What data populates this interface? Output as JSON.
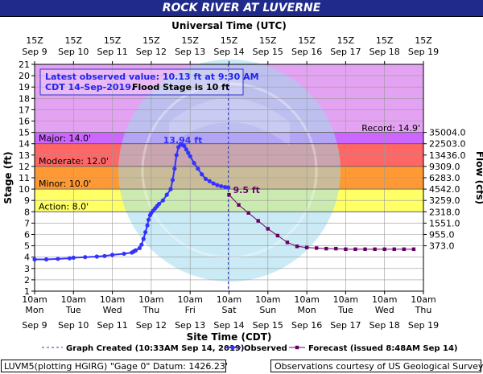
{
  "chart_data": {
    "type": "line",
    "title": "ROCK RIVER AT LUVERNE",
    "top_axis_title": "Universal Time (UTC)",
    "top_tick_labels": [
      [
        "15Z",
        "Sep 9"
      ],
      [
        "15Z",
        "Sep 10"
      ],
      [
        "15Z",
        "Sep 11"
      ],
      [
        "15Z",
        "Sep 12"
      ],
      [
        "15Z",
        "Sep 13"
      ],
      [
        "15Z",
        "Sep 14"
      ],
      [
        "15Z",
        "Sep 15"
      ],
      [
        "15Z",
        "Sep 16"
      ],
      [
        "15Z",
        "Sep 17"
      ],
      [
        "15Z",
        "Sep 18"
      ],
      [
        "15Z",
        "Sep 19"
      ]
    ],
    "bottom_tick_labels": [
      [
        "10am",
        "Mon",
        "Sep 9"
      ],
      [
        "10am",
        "Tue",
        "Sep 10"
      ],
      [
        "10am",
        "Wed",
        "Sep 11"
      ],
      [
        "10am",
        "Thu",
        "Sep 12"
      ],
      [
        "10am",
        "Fri",
        "Sep 13"
      ],
      [
        "10am",
        "Sat",
        "Sep 14"
      ],
      [
        "10am",
        "Sun",
        "Sep 15"
      ],
      [
        "10am",
        "Mon",
        "Sep 16"
      ],
      [
        "10am",
        "Tue",
        "Sep 17"
      ],
      [
        "10am",
        "Wed",
        "Sep 18"
      ],
      [
        "10am",
        "Thu",
        "Sep 19"
      ]
    ],
    "xlabel": "Site Time (CDT)",
    "ylabel": "Stage (ft)",
    "y2label": "Flow (cfs)",
    "ylim": [
      1,
      21
    ],
    "yticks": [
      1,
      2,
      3,
      4,
      5,
      6,
      7,
      8,
      9,
      10,
      11,
      12,
      13,
      14,
      15,
      16,
      17,
      18,
      19,
      20,
      21
    ],
    "xlim": [
      0,
      10
    ],
    "flow_ticks": [
      {
        "stage": 15,
        "label": "35004.0"
      },
      {
        "stage": 14,
        "label": "22503.0"
      },
      {
        "stage": 13,
        "label": "13436.0"
      },
      {
        "stage": 12,
        "label": "9309.0"
      },
      {
        "stage": 11,
        "label": "6283.0"
      },
      {
        "stage": 10,
        "label": "4542.0"
      },
      {
        "stage": 9,
        "label": "3259.0"
      },
      {
        "stage": 8,
        "label": "2318.0"
      },
      {
        "stage": 7,
        "label": "1551.0"
      },
      {
        "stage": 6,
        "label": "955.0"
      },
      {
        "stage": 5,
        "label": "373.0"
      }
    ],
    "bands": [
      {
        "name": "Record",
        "from": 15,
        "to": 21,
        "color": "#e3a3f2"
      },
      {
        "name": "Major",
        "from": 14,
        "to": 15,
        "color": "#cc66ff"
      },
      {
        "name": "Major",
        "from": 12,
        "to": 14,
        "color": "#ff6666"
      },
      {
        "name": "Moderate",
        "from": 10,
        "to": 12,
        "color": "#ff9933"
      },
      {
        "name": "Minor",
        "from": 8,
        "to": 10,
        "color": "#ffff66"
      }
    ],
    "threshold_labels": [
      {
        "label": "Record: 14.9'",
        "stage": 14.9,
        "side": "right"
      },
      {
        "label": "Major: 14.0'",
        "stage": 14,
        "side": "left"
      },
      {
        "label": "Moderate: 12.0'",
        "stage": 12,
        "side": "left"
      },
      {
        "label": "Minor: 10.0'",
        "stage": 10,
        "side": "left"
      },
      {
        "label": "Action: 8.0'",
        "stage": 8,
        "side": "left"
      }
    ],
    "annotations": {
      "info_line1": "Latest observed value: 10.13 ft at 9:30 AM",
      "info_line2_blue": "CDT 14-Sep-2019.",
      "info_line2_black": "Flood Stage is 10 ft",
      "peak_label": "13.94 ft",
      "forecast_label": "9.5 ft"
    },
    "graph_created_day": 4.98,
    "series": [
      {
        "name": "Observed",
        "color": "#3333ff",
        "x": [
          0.0,
          0.3,
          0.6,
          0.9,
          1.0,
          1.3,
          1.6,
          1.8,
          2.0,
          2.3,
          2.5,
          2.55,
          2.6,
          2.7,
          2.75,
          2.8,
          2.85,
          2.9,
          2.93,
          2.97,
          3.0,
          3.05,
          3.1,
          3.15,
          3.2,
          3.3,
          3.4,
          3.5,
          3.55,
          3.6,
          3.65,
          3.7,
          3.75,
          3.8,
          3.85,
          3.9,
          3.95,
          4.0,
          4.1,
          4.2,
          4.3,
          4.4,
          4.5,
          4.6,
          4.7,
          4.8,
          4.9,
          4.98
        ],
        "y": [
          3.8,
          3.8,
          3.85,
          3.9,
          3.95,
          4.0,
          4.05,
          4.1,
          4.2,
          4.3,
          4.4,
          4.5,
          4.6,
          4.8,
          5.1,
          5.6,
          6.2,
          6.8,
          7.3,
          7.7,
          7.9,
          8.1,
          8.3,
          8.5,
          8.7,
          9.0,
          9.5,
          10.0,
          10.8,
          11.8,
          13.0,
          13.7,
          13.94,
          13.9,
          13.8,
          13.5,
          13.2,
          12.9,
          12.3,
          11.8,
          11.3,
          10.9,
          10.7,
          10.5,
          10.35,
          10.25,
          10.18,
          10.13
        ]
      },
      {
        "name": "Forecast (issued 8:48AM Sep 14)",
        "color": "#660066",
        "x": [
          5.0,
          5.25,
          5.5,
          5.75,
          6.0,
          6.25,
          6.5,
          6.75,
          7.0,
          7.25,
          7.5,
          7.75,
          8.0,
          8.25,
          8.5,
          8.75,
          9.0,
          9.25,
          9.5,
          9.75
        ],
        "y": [
          9.5,
          8.6,
          7.9,
          7.2,
          6.5,
          5.9,
          5.3,
          4.95,
          4.85,
          4.8,
          4.75,
          4.75,
          4.7,
          4.7,
          4.7,
          4.7,
          4.7,
          4.7,
          4.7,
          4.7
        ]
      }
    ],
    "legend": [
      {
        "label": "Graph Created (10:33AM Sep 14, 2019)",
        "style": "dashed",
        "color": "#3333cc"
      },
      {
        "label": "Observed",
        "style": "line-circle",
        "color": "#3333ff"
      },
      {
        "label": "Forecast (issued 8:48AM Sep 14)",
        "style": "line-square",
        "color": "#660066"
      }
    ],
    "grid": true,
    "footer_left": "LUVM5(plotting HGIRG) \"Gage 0\" Datum: 1426.23'",
    "footer_right": "Observations courtesy of US Geological Survey"
  }
}
